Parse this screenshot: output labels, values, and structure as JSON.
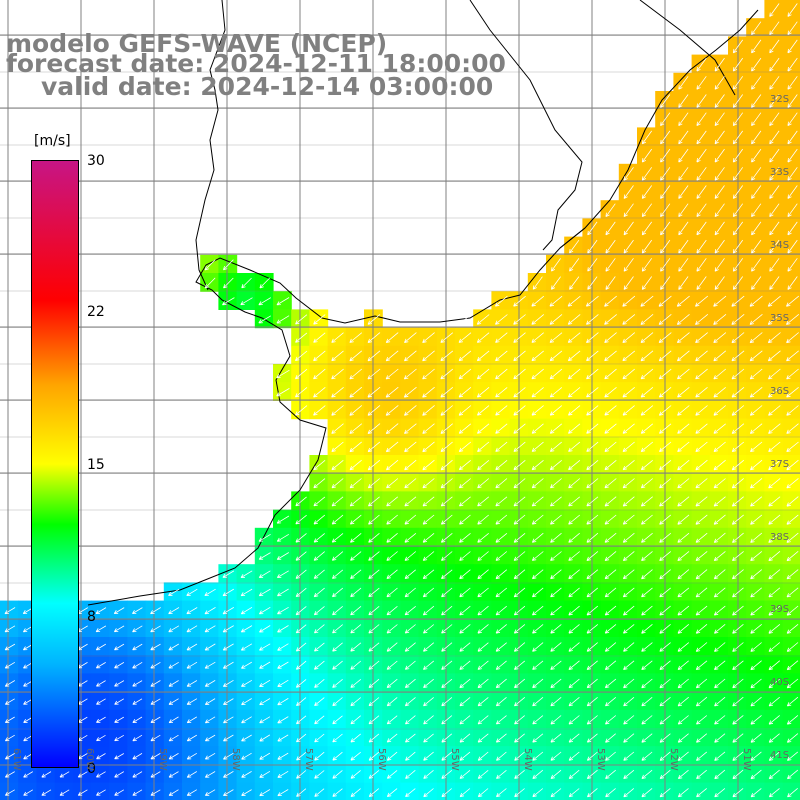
{
  "title": {
    "line1": "modelo GEFS-WAVE (NCEP)",
    "line2": "forecast date: 2024-12-11 18:00:00",
    "line3": "valid date: 2024-12-14 03:00:00"
  },
  "colorbar": {
    "unit": "[m/s]",
    "min": 0,
    "max": 30,
    "ticks": [
      {
        "value": 30,
        "label": "30"
      },
      {
        "value": 22,
        "label": "22"
      },
      {
        "value": 15,
        "label": "15"
      },
      {
        "value": 8,
        "label": "8"
      },
      {
        "value": 0,
        "label": "0"
      }
    ],
    "colors": {
      "v0": "#0000ff",
      "v5": "#00b4ff",
      "v8": "#00ffff",
      "v12": "#00ff00",
      "v15": "#ffff00",
      "v19": "#ffa500",
      "v23": "#ff0000",
      "v30": "#c71585"
    }
  },
  "map": {
    "variable": "wind speed",
    "land_color": "#ffffff",
    "grid_color": "#808080",
    "lat_labels": [
      "32S",
      "33S",
      "34S",
      "35S",
      "36S",
      "37S",
      "38S",
      "39S",
      "40S",
      "41S"
    ],
    "lon_labels": [
      "61W",
      "60W",
      "59W",
      "58W",
      "57W",
      "56W",
      "55W",
      "54W",
      "53W",
      "52W",
      "51W"
    ]
  }
}
